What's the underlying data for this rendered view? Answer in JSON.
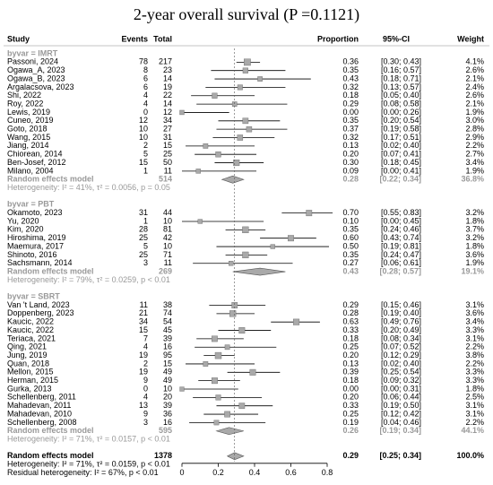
{
  "chart_data": {
    "type": "forest",
    "title": "2-year overall survival (P =0.1121)",
    "headers": {
      "study": "Study",
      "events": "Events",
      "total": "Total",
      "proportion": "Proportion",
      "ci": "95%-CI",
      "weight": "Weight"
    },
    "xlim": [
      0,
      0.8
    ],
    "xticks": [
      0,
      0.2,
      0.4,
      0.6,
      0.8
    ],
    "color": "#a9a9a9",
    "groups": [
      {
        "label": "byvar = IMRT",
        "studies": [
          {
            "study": "Passoni, 2024",
            "events": 78,
            "total": 217,
            "estimate": 0.36,
            "ci": [
              0.3,
              0.43
            ],
            "weight": 4.1,
            "estimate_label": "0.36",
            "ci_label": "[0.30; 0.43]",
            "weight_label": "4.1%"
          },
          {
            "study": "Ogawa_A, 2023",
            "events": 8,
            "total": 23,
            "estimate": 0.35,
            "ci": [
              0.16,
              0.57
            ],
            "weight": 2.6,
            "estimate_label": "0.35",
            "ci_label": "[0.16; 0.57]",
            "weight_label": "2.6%"
          },
          {
            "study": "Ogawa_B, 2023",
            "events": 6,
            "total": 14,
            "estimate": 0.43,
            "ci": [
              0.18,
              0.71
            ],
            "weight": 2.1,
            "estimate_label": "0.43",
            "ci_label": "[0.18; 0.71]",
            "weight_label": "2.1%"
          },
          {
            "study": "Argalacsova, 2023",
            "events": 6,
            "total": 19,
            "estimate": 0.32,
            "ci": [
              0.13,
              0.57
            ],
            "weight": 2.4,
            "estimate_label": "0.32",
            "ci_label": "[0.13; 0.57]",
            "weight_label": "2.4%"
          },
          {
            "study": "Shi, 2022",
            "events": 4,
            "total": 22,
            "estimate": 0.18,
            "ci": [
              0.05,
              0.4
            ],
            "weight": 2.6,
            "estimate_label": "0.18",
            "ci_label": "[0.05; 0.40]",
            "weight_label": "2.6%"
          },
          {
            "study": "Roy, 2022",
            "events": 4,
            "total": 14,
            "estimate": 0.29,
            "ci": [
              0.08,
              0.58
            ],
            "weight": 2.1,
            "estimate_label": "0.29",
            "ci_label": "[0.08; 0.58]",
            "weight_label": "2.1%"
          },
          {
            "study": "Lewis, 2019",
            "events": 0,
            "total": 12,
            "estimate": 0.0,
            "ci": [
              0.0,
              0.26
            ],
            "weight": 1.9,
            "estimate_label": "0.00",
            "ci_label": "[0.00; 0.26]",
            "weight_label": "1.9%"
          },
          {
            "study": "Cuneo, 2019",
            "events": 12,
            "total": 34,
            "estimate": 0.35,
            "ci": [
              0.2,
              0.54
            ],
            "weight": 3.0,
            "estimate_label": "0.35",
            "ci_label": "[0.20; 0.54]",
            "weight_label": "3.0%"
          },
          {
            "study": "Goto, 2018",
            "events": 10,
            "total": 27,
            "estimate": 0.37,
            "ci": [
              0.19,
              0.58
            ],
            "weight": 2.8,
            "estimate_label": "0.37",
            "ci_label": "[0.19; 0.58]",
            "weight_label": "2.8%"
          },
          {
            "study": "Wang, 2015",
            "events": 10,
            "total": 31,
            "estimate": 0.32,
            "ci": [
              0.17,
              0.51
            ],
            "weight": 2.9,
            "estimate_label": "0.32",
            "ci_label": "[0.17; 0.51]",
            "weight_label": "2.9%"
          },
          {
            "study": "Jiang, 2014",
            "events": 2,
            "total": 15,
            "estimate": 0.13,
            "ci": [
              0.02,
              0.4
            ],
            "weight": 2.2,
            "estimate_label": "0.13",
            "ci_label": "[0.02; 0.40]",
            "weight_label": "2.2%"
          },
          {
            "study": "Chiorean, 2014",
            "events": 5,
            "total": 25,
            "estimate": 0.2,
            "ci": [
              0.07,
              0.41
            ],
            "weight": 2.7,
            "estimate_label": "0.20",
            "ci_label": "[0.07; 0.41]",
            "weight_label": "2.7%"
          },
          {
            "study": "Ben-Josef, 2012",
            "events": 15,
            "total": 50,
            "estimate": 0.3,
            "ci": [
              0.18,
              0.45
            ],
            "weight": 3.4,
            "estimate_label": "0.30",
            "ci_label": "[0.18; 0.45]",
            "weight_label": "3.4%"
          },
          {
            "study": "Milano, 2004",
            "events": 1,
            "total": 11,
            "estimate": 0.09,
            "ci": [
              0.0,
              0.41
            ],
            "weight": 1.9,
            "estimate_label": "0.09",
            "ci_label": "[0.00; 0.41]",
            "weight_label": "1.9%"
          }
        ],
        "summary": {
          "label": "Random effects model",
          "total": 514,
          "estimate": 0.28,
          "ci": [
            0.22,
            0.34
          ],
          "weight": 36.8,
          "estimate_label": "0.28",
          "ci_label": "[0.22; 0.34]",
          "weight_label": "36.8%"
        },
        "heterogeneity": "Heterogeneity: I² = 41%, τ² = 0.0056, p = 0.05"
      },
      {
        "label": "byvar = PBT",
        "studies": [
          {
            "study": "Okamoto, 2023",
            "events": 31,
            "total": 44,
            "estimate": 0.7,
            "ci": [
              0.55,
              0.83
            ],
            "weight": 3.2,
            "estimate_label": "0.70",
            "ci_label": "[0.55; 0.83]",
            "weight_label": "3.2%"
          },
          {
            "study": "Yu, 2020",
            "events": 1,
            "total": 10,
            "estimate": 0.1,
            "ci": [
              0.0,
              0.45
            ],
            "weight": 1.8,
            "estimate_label": "0.10",
            "ci_label": "[0.00; 0.45]",
            "weight_label": "1.8%"
          },
          {
            "study": "Kim, 2020",
            "events": 28,
            "total": 81,
            "estimate": 0.35,
            "ci": [
              0.24,
              0.46
            ],
            "weight": 3.7,
            "estimate_label": "0.35",
            "ci_label": "[0.24; 0.46]",
            "weight_label": "3.7%"
          },
          {
            "study": "Hiroshima, 2019",
            "events": 25,
            "total": 42,
            "estimate": 0.6,
            "ci": [
              0.43,
              0.74
            ],
            "weight": 3.2,
            "estimate_label": "0.60",
            "ci_label": "[0.43; 0.74]",
            "weight_label": "3.2%"
          },
          {
            "study": "Maemura, 2017",
            "events": 5,
            "total": 10,
            "estimate": 0.5,
            "ci": [
              0.19,
              0.81
            ],
            "weight": 1.8,
            "estimate_label": "0.50",
            "ci_label": "[0.19; 0.81]",
            "weight_label": "1.8%"
          },
          {
            "study": "Shinoto, 2016",
            "events": 25,
            "total": 71,
            "estimate": 0.35,
            "ci": [
              0.24,
              0.47
            ],
            "weight": 3.6,
            "estimate_label": "0.35",
            "ci_label": "[0.24; 0.47]",
            "weight_label": "3.6%"
          },
          {
            "study": "Sachsmann, 2014",
            "events": 3,
            "total": 11,
            "estimate": 0.27,
            "ci": [
              0.06,
              0.61
            ],
            "weight": 1.9,
            "estimate_label": "0.27",
            "ci_label": "[0.06; 0.61]",
            "weight_label": "1.9%"
          }
        ],
        "summary": {
          "label": "Random effects model",
          "total": 269,
          "estimate": 0.43,
          "ci": [
            0.28,
            0.57
          ],
          "weight": 19.1,
          "estimate_label": "0.43",
          "ci_label": "[0.28; 0.57]",
          "weight_label": "19.1%"
        },
        "heterogeneity": "Heterogeneity: I² = 79%, τ² = 0.0259, p < 0.01"
      },
      {
        "label": "byvar = SBRT",
        "studies": [
          {
            "study": "Van 't Land, 2023",
            "events": 11,
            "total": 38,
            "estimate": 0.29,
            "ci": [
              0.15,
              0.46
            ],
            "weight": 3.1,
            "estimate_label": "0.29",
            "ci_label": "[0.15; 0.46]",
            "weight_label": "3.1%"
          },
          {
            "study": "Doppenberg, 2023",
            "events": 21,
            "total": 74,
            "estimate": 0.28,
            "ci": [
              0.19,
              0.4
            ],
            "weight": 3.6,
            "estimate_label": "0.28",
            "ci_label": "[0.19; 0.40]",
            "weight_label": "3.6%"
          },
          {
            "study": "Kaucic, 2022",
            "events": 34,
            "total": 54,
            "estimate": 0.63,
            "ci": [
              0.49,
              0.76
            ],
            "weight": 3.4,
            "estimate_label": "0.63",
            "ci_label": "[0.49; 0.76]",
            "weight_label": "3.4%"
          },
          {
            "study": "Kaucic, 2022",
            "events": 15,
            "total": 45,
            "estimate": 0.33,
            "ci": [
              0.2,
              0.49
            ],
            "weight": 3.3,
            "estimate_label": "0.33",
            "ci_label": "[0.20; 0.49]",
            "weight_label": "3.3%"
          },
          {
            "study": "Teriaca, 2021",
            "events": 7,
            "total": 39,
            "estimate": 0.18,
            "ci": [
              0.08,
              0.34
            ],
            "weight": 3.1,
            "estimate_label": "0.18",
            "ci_label": "[0.08; 0.34]",
            "weight_label": "3.1%"
          },
          {
            "study": "Qing, 2021",
            "events": 4,
            "total": 16,
            "estimate": 0.25,
            "ci": [
              0.07,
              0.52
            ],
            "weight": 2.2,
            "estimate_label": "0.25",
            "ci_label": "[0.07; 0.52]",
            "weight_label": "2.2%"
          },
          {
            "study": "Jung, 2019",
            "events": 19,
            "total": 95,
            "estimate": 0.2,
            "ci": [
              0.12,
              0.29
            ],
            "weight": 3.8,
            "estimate_label": "0.20",
            "ci_label": "[0.12; 0.29]",
            "weight_label": "3.8%"
          },
          {
            "study": "Quan, 2018",
            "events": 2,
            "total": 15,
            "estimate": 0.13,
            "ci": [
              0.02,
              0.4
            ],
            "weight": 2.2,
            "estimate_label": "0.13",
            "ci_label": "[0.02; 0.40]",
            "weight_label": "2.2%"
          },
          {
            "study": "Mellon, 2015",
            "events": 19,
            "total": 49,
            "estimate": 0.39,
            "ci": [
              0.25,
              0.54
            ],
            "weight": 3.3,
            "estimate_label": "0.39",
            "ci_label": "[0.25; 0.54]",
            "weight_label": "3.3%"
          },
          {
            "study": "Herman, 2015",
            "events": 9,
            "total": 49,
            "estimate": 0.18,
            "ci": [
              0.09,
              0.32
            ],
            "weight": 3.3,
            "estimate_label": "0.18",
            "ci_label": "[0.09; 0.32]",
            "weight_label": "3.3%"
          },
          {
            "study": "Gurka, 2013",
            "events": 0,
            "total": 10,
            "estimate": 0.0,
            "ci": [
              0.0,
              0.31
            ],
            "weight": 1.8,
            "estimate_label": "0.00",
            "ci_label": "[0.00; 0.31]",
            "weight_label": "1.8%"
          },
          {
            "study": "Schellenberg, 2011",
            "events": 4,
            "total": 20,
            "estimate": 0.2,
            "ci": [
              0.06,
              0.44
            ],
            "weight": 2.5,
            "estimate_label": "0.20",
            "ci_label": "[0.06; 0.44]",
            "weight_label": "2.5%"
          },
          {
            "study": "Mahadevan, 2011",
            "events": 13,
            "total": 39,
            "estimate": 0.33,
            "ci": [
              0.19,
              0.5
            ],
            "weight": 3.1,
            "estimate_label": "0.33",
            "ci_label": "[0.19; 0.50]",
            "weight_label": "3.1%"
          },
          {
            "study": "Mahadevan, 2010",
            "events": 9,
            "total": 36,
            "estimate": 0.25,
            "ci": [
              0.12,
              0.42
            ],
            "weight": 3.1,
            "estimate_label": "0.25",
            "ci_label": "[0.12; 0.42]",
            "weight_label": "3.1%"
          },
          {
            "study": "Schellenberg, 2008",
            "events": 3,
            "total": 16,
            "estimate": 0.19,
            "ci": [
              0.04,
              0.46
            ],
            "weight": 2.2,
            "estimate_label": "0.19",
            "ci_label": "[0.04; 0.46]",
            "weight_label": "2.2%"
          }
        ],
        "summary": {
          "label": "Random effects model",
          "total": 595,
          "estimate": 0.26,
          "ci": [
            0.19,
            0.34
          ],
          "weight": 44.1,
          "estimate_label": "0.26",
          "ci_label": "[0.19; 0.34]",
          "weight_label": "44.1%"
        },
        "heterogeneity": "Heterogeneity: I² = 71%, τ² = 0.0157, p < 0.01"
      }
    ],
    "overall": {
      "label": "Random effects model",
      "total": 1378,
      "estimate": 0.29,
      "ci": [
        0.25,
        0.34
      ],
      "weight": 100.0,
      "estimate_label": "0.29",
      "ci_label": "[0.25; 0.34]",
      "weight_label": "100.0%"
    },
    "overall_heterogeneity": "Heterogeneity: I² = 71%, τ² = 0.0159, p < 0.01",
    "residual_heterogeneity": "Residual heterogeneity: I² = 67%, p < 0.01"
  }
}
